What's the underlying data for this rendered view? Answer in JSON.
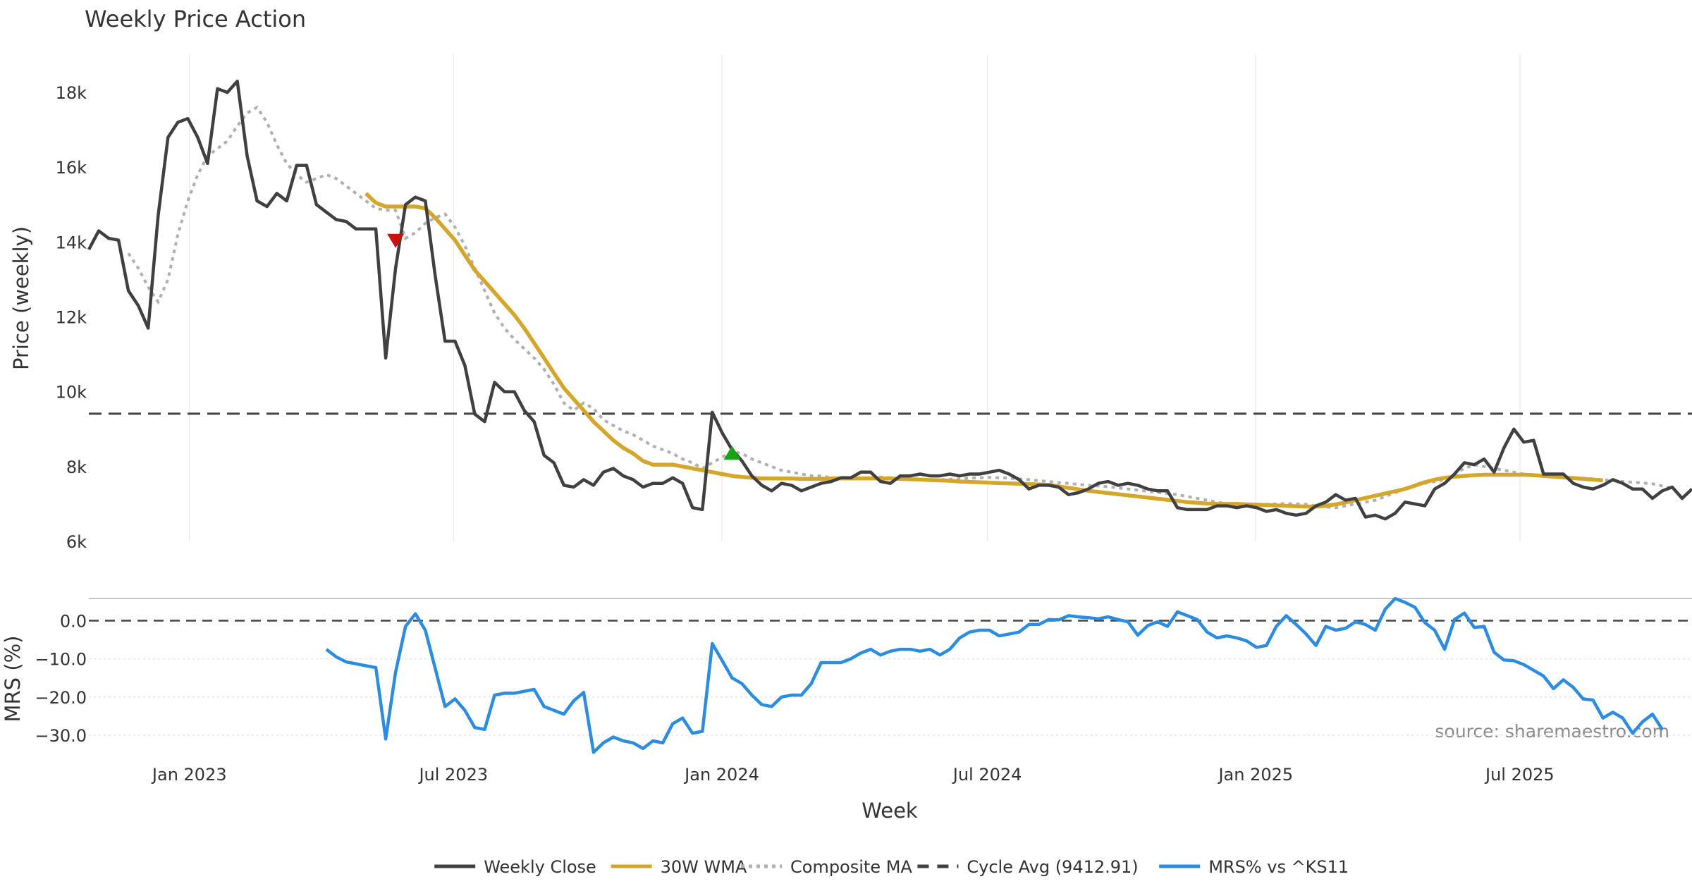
{
  "chart_data": {
    "type": "line",
    "title": "Weekly Price Action",
    "xlabel": "Week",
    "source": "source: sharemaestro.com",
    "x_ticks": [
      "Jan 2023",
      "Jul 2023",
      "Jan 2024",
      "Jul 2024",
      "Jan 2025",
      "Jul 2025"
    ],
    "x_range": [
      "2022-10-24",
      "2025-10-27"
    ],
    "price_panel": {
      "ylabel": "Price (weekly)",
      "ylim": [
        6000,
        19000
      ],
      "y_ticks": [
        6000,
        8000,
        10000,
        12000,
        14000,
        16000,
        18000
      ],
      "y_tick_labels": [
        "6k",
        "8k",
        "10k",
        "12k",
        "14k",
        "16k",
        "18k"
      ],
      "cycle_avg": 9412.91,
      "series": [
        {
          "name": "Weekly Close",
          "color": "#404040",
          "values": [
            13800,
            14300,
            14100,
            14050,
            12700,
            12300,
            11700,
            14700,
            16800,
            17200,
            17300,
            16800,
            16100,
            18100,
            18000,
            18300,
            16300,
            15100,
            14950,
            15300,
            15100,
            16050,
            16050,
            15000,
            14800,
            14600,
            14550,
            14350,
            14350,
            14350,
            10900,
            13300,
            15000,
            15200,
            15100,
            13100,
            11350,
            11350,
            10700,
            9400,
            9200,
            10250,
            10000,
            10000,
            9500,
            9200,
            8300,
            8100,
            7500,
            7450,
            7650,
            7500,
            7850,
            7950,
            7750,
            7650,
            7450,
            7550,
            7550,
            7700,
            7550,
            6900,
            6850,
            9450,
            8900,
            8450,
            8150,
            7750,
            7500,
            7350,
            7550,
            7500,
            7350,
            7450,
            7550,
            7600,
            7700,
            7700,
            7850,
            7850,
            7600,
            7550,
            7750,
            7750,
            7800,
            7750,
            7750,
            7800,
            7750,
            7800,
            7800,
            7850,
            7900,
            7800,
            7650,
            7400,
            7500,
            7500,
            7450,
            7250,
            7300,
            7400,
            7550,
            7600,
            7500,
            7550,
            7500,
            7400,
            7350,
            7350,
            6900,
            6850,
            6850,
            6850,
            6950,
            6950,
            6900,
            6950,
            6900,
            6800,
            6850,
            6750,
            6700,
            6750,
            6950,
            7050,
            7250,
            7100,
            7150,
            6650,
            6700,
            6600,
            6750,
            7050,
            7000,
            6950,
            7400,
            7550,
            7800,
            8100,
            8050,
            8200,
            7850,
            8500,
            9000,
            8650,
            8700,
            7800,
            7800,
            7800,
            7550,
            7450,
            7400,
            7500,
            7650,
            7550,
            7400,
            7400,
            7150,
            7350,
            7450,
            7150,
            7400
          ]
        },
        {
          "name": "30W WMA",
          "color": "#d4a62a",
          "start_index": 28,
          "values": [
            15300,
            15050,
            14950,
            14950,
            14950,
            14950,
            14900,
            14650,
            14350,
            14050,
            13650,
            13250,
            12950,
            12650,
            12350,
            12050,
            11700,
            11300,
            10900,
            10500,
            10100,
            9800,
            9500,
            9200,
            8950,
            8700,
            8500,
            8350,
            8150,
            8050,
            8050,
            8050,
            8000,
            7950,
            7900,
            7850,
            7800,
            7750,
            7720,
            7700,
            7680,
            7680,
            7680,
            7680,
            7670,
            7670,
            7670,
            7680,
            7680,
            7680,
            7680,
            7680,
            7680,
            7680,
            7670,
            7660,
            7650,
            7640,
            7630,
            7620,
            7600,
            7590,
            7580,
            7570,
            7560,
            7550,
            7540,
            7530,
            7520,
            7510,
            7470,
            7430,
            7390,
            7350,
            7320,
            7290,
            7260,
            7230,
            7200,
            7170,
            7140,
            7110,
            7080,
            7050,
            7030,
            7010,
            7000,
            7000,
            7000,
            6990,
            6980,
            6970,
            6960,
            6950,
            6940,
            6930,
            6930,
            6950,
            6990,
            7040,
            7100,
            7160,
            7220,
            7280,
            7340,
            7400,
            7490,
            7580,
            7650,
            7700,
            7730,
            7750,
            7770,
            7780,
            7780,
            7780,
            7780,
            7780,
            7770,
            7750,
            7730,
            7710,
            7690,
            7670,
            7650,
            7630
          ]
        },
        {
          "name": "Composite MA",
          "color": "#b0b0b0",
          "start_index": 4,
          "values": [
            13700,
            13300,
            12800,
            12400,
            13000,
            14200,
            15100,
            15800,
            16300,
            16500,
            16700,
            17100,
            17450,
            17600,
            17200,
            16600,
            16100,
            15800,
            15600,
            15700,
            15800,
            15700,
            15500,
            15300,
            15100,
            14900,
            14850,
            14850,
            14100,
            14250,
            14500,
            14650,
            14750,
            14400,
            13900,
            13300,
            12700,
            12100,
            11700,
            11400,
            11150,
            10900,
            10600,
            10200,
            9700,
            9500,
            9700,
            9550,
            9250,
            9100,
            8950,
            8850,
            8700,
            8550,
            8450,
            8350,
            8200,
            8100,
            7950,
            8100,
            8250,
            8400,
            8350,
            8200,
            8100,
            8000,
            7900,
            7850,
            7800,
            7750,
            7750,
            7700,
            7700,
            7680,
            7700,
            7700,
            7720,
            7700,
            7680,
            7670,
            7660,
            7650,
            7650,
            7660,
            7670,
            7690,
            7700,
            7710,
            7700,
            7690,
            7670,
            7650,
            7620,
            7600,
            7570,
            7550,
            7520,
            7500,
            7480,
            7460,
            7430,
            7400,
            7370,
            7340,
            7310,
            7280,
            7250,
            7200,
            7150,
            7100,
            7050,
            7000,
            6990,
            6980,
            6980,
            6990,
            7000,
            7010,
            7000,
            6990,
            6950,
            6920,
            6900,
            6950,
            7000,
            7050,
            7100,
            7200,
            7300,
            7400,
            7500,
            7550,
            7600,
            7650,
            7800,
            7950,
            8050,
            8000,
            7950,
            7900,
            7850,
            7800,
            7780,
            7760,
            7740,
            7720,
            7700,
            7690,
            7670,
            7650,
            7620,
            7600,
            7580,
            7560,
            7540,
            7480,
            7420
          ]
        }
      ],
      "markers": [
        {
          "type": "sell",
          "index": 31,
          "value": 14050,
          "color": "#cc1111"
        },
        {
          "type": "buy",
          "index": 65,
          "value": 8350,
          "color": "#17a517"
        }
      ]
    },
    "mrs_panel": {
      "ylabel": "MRS (%)",
      "ylim": [
        -35,
        6
      ],
      "y_ticks": [
        0,
        -10,
        -20,
        -30
      ],
      "y_tick_labels": [
        "0.0",
        "−10.0",
        "−20.0",
        "−30.0"
      ],
      "series": [
        {
          "name": "MRS% vs ^KS11",
          "color": "#2b8ce0",
          "start_index": 24,
          "values": [
            -7.5,
            -9.5,
            -10.8,
            -11.3,
            -11.8,
            -12.3,
            -31.0,
            -13.5,
            -1.5,
            1.8,
            -2.5,
            -12.5,
            -22.5,
            -20.5,
            -23.5,
            -28.0,
            -28.5,
            -19.5,
            -19.0,
            -19.0,
            -18.5,
            -18.0,
            -22.5,
            -23.5,
            -24.5,
            -21.0,
            -18.8,
            -34.5,
            -32.0,
            -30.5,
            -31.5,
            -32.0,
            -33.5,
            -31.5,
            -32.0,
            -27.0,
            -25.5,
            -29.5,
            -29.0,
            -6.0,
            -10.5,
            -15.0,
            -16.5,
            -19.5,
            -22.0,
            -22.5,
            -20.0,
            -19.5,
            -19.5,
            -16.5,
            -11.0,
            -11.0,
            -11.0,
            -10.0,
            -8.5,
            -7.5,
            -9.0,
            -8.0,
            -7.5,
            -7.5,
            -8.0,
            -7.5,
            -9.0,
            -7.5,
            -4.5,
            -3.0,
            -2.5,
            -2.5,
            -4.0,
            -3.5,
            -3.0,
            -1.0,
            -1.0,
            0.3,
            0.2,
            1.3,
            1.0,
            0.8,
            0.5,
            1.0,
            0.3,
            -0.3,
            -3.8,
            -1.3,
            -0.3,
            -1.5,
            2.3,
            1.3,
            0.3,
            -3.0,
            -4.5,
            -4.0,
            -4.5,
            -5.3,
            -7.0,
            -6.5,
            -1.5,
            1.3,
            -1.0,
            -3.5,
            -6.5,
            -1.5,
            -2.5,
            -2.0,
            -0.3,
            -1.0,
            -2.5,
            3.0,
            5.8,
            4.8,
            3.5,
            -0.5,
            -2.5,
            -7.5,
            0.3,
            2.0,
            -1.8,
            -1.5,
            -8.3,
            -10.3,
            -10.5,
            -11.5,
            -13.0,
            -14.5,
            -17.8,
            -15.5,
            -17.5,
            -20.5,
            -20.8,
            -25.5,
            -24.0,
            -25.5,
            -29.5,
            -26.5,
            -24.5,
            -28.5
          ]
        }
      ]
    },
    "legend": [
      {
        "label": "Weekly Close",
        "color": "#404040",
        "style": "solid"
      },
      {
        "label": "30W WMA",
        "color": "#d4a62a",
        "style": "solid"
      },
      {
        "label": "Composite MA",
        "color": "#b0b0b0",
        "style": "dotted"
      },
      {
        "label": "Cycle Avg (9412.91)",
        "color": "#404040",
        "style": "dashed"
      },
      {
        "label": "MRS% vs ^KS11",
        "color": "#2b8ce0",
        "style": "solid"
      }
    ]
  }
}
